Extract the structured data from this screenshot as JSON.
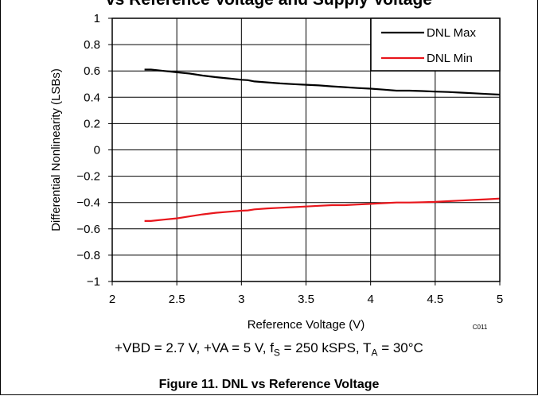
{
  "header": {
    "truncated_title": "vs Reference Voltage and Supply Voltage"
  },
  "chart_data": {
    "type": "line",
    "title": "",
    "xlabel": "Reference Voltage (V)",
    "ylabel": "Differential Nonlinearity (LSBs)",
    "xlim": [
      2,
      5
    ],
    "ylim": [
      -1,
      1
    ],
    "x_ticks": [
      2,
      2.5,
      3,
      3.5,
      4,
      4.5,
      5
    ],
    "x_tick_labels": [
      "2",
      "2.5",
      "3",
      "3.5",
      "4",
      "4.5",
      "5"
    ],
    "y_ticks": [
      1,
      0.8,
      0.6,
      0.4,
      0.2,
      0,
      -0.2,
      -0.4,
      -0.6,
      -0.8,
      -1
    ],
    "y_tick_labels": [
      "1",
      "0.8",
      "0.6",
      "0.4",
      "0.2",
      "0",
      "−0.2",
      "−0.4",
      "−0.6",
      "−0.8",
      "−1"
    ],
    "grid": true,
    "legend_position": "top-right",
    "code_label": "C011",
    "series": [
      {
        "name": "DNL Max",
        "color": "#000000",
        "x": [
          2.25,
          2.3,
          2.35,
          2.4,
          2.45,
          2.5,
          2.6,
          2.7,
          2.8,
          2.9,
          3.0,
          3.05,
          3.1,
          3.2,
          3.3,
          3.4,
          3.5,
          3.6,
          3.7,
          3.8,
          3.9,
          4.0,
          4.1,
          4.2,
          4.3,
          4.4,
          4.5,
          4.6,
          4.7,
          4.8,
          4.9,
          5.0
        ],
        "y": [
          0.61,
          0.61,
          0.605,
          0.6,
          0.595,
          0.59,
          0.58,
          0.565,
          0.553,
          0.543,
          0.533,
          0.53,
          0.52,
          0.513,
          0.505,
          0.5,
          0.495,
          0.49,
          0.483,
          0.477,
          0.47,
          0.465,
          0.458,
          0.45,
          0.45,
          0.447,
          0.443,
          0.44,
          0.435,
          0.43,
          0.425,
          0.42
        ]
      },
      {
        "name": "DNL Min",
        "color": "#e8161c",
        "x": [
          2.25,
          2.3,
          2.35,
          2.4,
          2.45,
          2.5,
          2.6,
          2.7,
          2.8,
          2.9,
          3.0,
          3.05,
          3.1,
          3.2,
          3.3,
          3.4,
          3.5,
          3.6,
          3.7,
          3.8,
          3.9,
          4.0,
          4.1,
          4.2,
          4.3,
          4.4,
          4.5,
          4.6,
          4.7,
          4.8,
          4.9,
          5.0
        ],
        "y": [
          -0.54,
          -0.54,
          -0.535,
          -0.53,
          -0.525,
          -0.52,
          -0.505,
          -0.49,
          -0.478,
          -0.47,
          -0.462,
          -0.46,
          -0.452,
          -0.445,
          -0.44,
          -0.435,
          -0.43,
          -0.425,
          -0.42,
          -0.42,
          -0.415,
          -0.41,
          -0.405,
          -0.4,
          -0.4,
          -0.398,
          -0.395,
          -0.39,
          -0.385,
          -0.38,
          -0.375,
          -0.37
        ]
      }
    ]
  },
  "conditions": {
    "prefix": "+VBD = 2.7 V, +VA = 5 V, f",
    "fs_sub": "S",
    "middle": " = 250 kSPS, T",
    "ta_sub": "A",
    "suffix": " = 30°C"
  },
  "caption": "Figure 11. DNL vs Reference Voltage"
}
